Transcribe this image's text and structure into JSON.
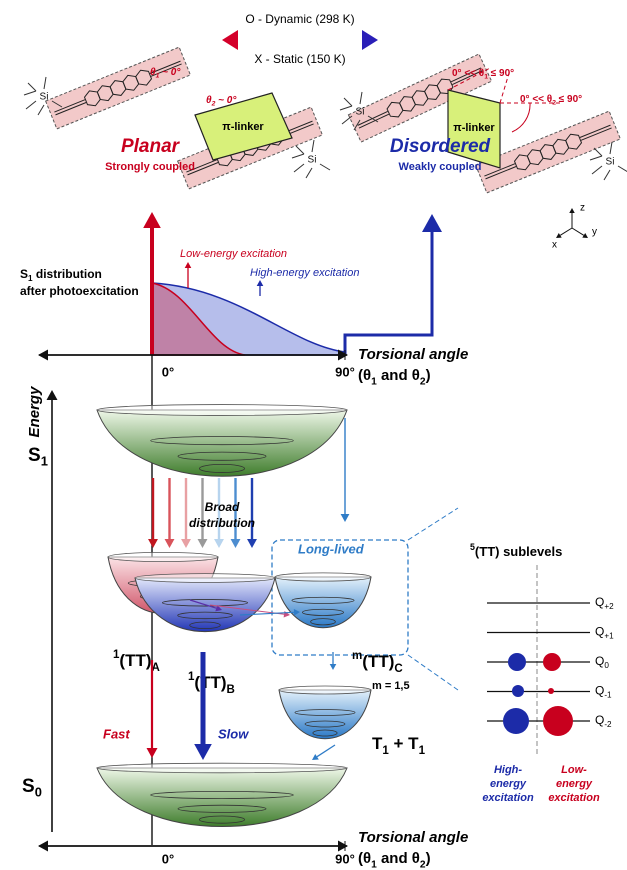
{
  "legend": {
    "dynamic": "O - Dynamic (298 K)",
    "static": "X - Static (150 K)"
  },
  "structures": {
    "linker_left": "π-linker",
    "linker_right": "π-linker",
    "si": [
      "Si",
      "Si",
      "Si",
      "Si"
    ],
    "theta1_planar": [
      "θ",
      "1",
      " ~ 0°"
    ],
    "theta2_planar": [
      "θ",
      "2",
      " ~ 0°"
    ],
    "theta1_disordered": [
      "0° << θ",
      "1",
      " ≤ 90°"
    ],
    "theta2_disordered": [
      "0° << θ",
      "2",
      " ≤ 90°"
    ],
    "axes": [
      "z",
      "y",
      "x"
    ]
  },
  "states": {
    "planar": "Planar",
    "planar_note": "Strongly coupled",
    "disordered": "Disordered",
    "disordered_note": "Weakly coupled"
  },
  "distribution": {
    "label": [
      "S",
      "1",
      " distribution"
    ],
    "label2": "after photoexcitation",
    "low": "Low-energy excitation",
    "high": "High-energy excitation",
    "axis_title": "Torsional angle",
    "axis_sub": [
      "(θ",
      "1",
      " and θ",
      "2",
      ")"
    ],
    "ticks": [
      "0°",
      "90°"
    ]
  },
  "energy": {
    "axis_title": "Energy",
    "s1": [
      "S",
      "1"
    ],
    "broad": [
      "Broad",
      "distribution"
    ],
    "long_lived": "Long-lived",
    "tt_a": [
      "1",
      "(TT)",
      "A"
    ],
    "tt_b": [
      "1",
      "(TT)",
      "B"
    ],
    "tt_c": [
      "m",
      "(TT)",
      "C"
    ],
    "m_values": "m = 1,5",
    "t1t1": [
      "T",
      "1",
      " + T",
      "1"
    ],
    "fast": "Fast",
    "slow": "Slow",
    "s0": [
      "S",
      "0"
    ],
    "bottom_axis_title": "Torsional angle",
    "bottom_axis_sub": [
      "(θ",
      "1",
      " and θ",
      "2",
      ")"
    ],
    "bottom_ticks": [
      "0°",
      "90°"
    ]
  },
  "sublevels": {
    "title": [
      "5",
      "(TT) sublevels"
    ],
    "levels": [
      [
        "Q",
        "+2"
      ],
      [
        "Q",
        "+1"
      ],
      [
        "Q",
        "0"
      ],
      [
        "Q",
        "-1"
      ],
      [
        "Q",
        "-2"
      ]
    ],
    "high": [
      "High-",
      "energy",
      "excitation"
    ],
    "low": [
      "Low-",
      "energy",
      "excitation"
    ]
  }
}
